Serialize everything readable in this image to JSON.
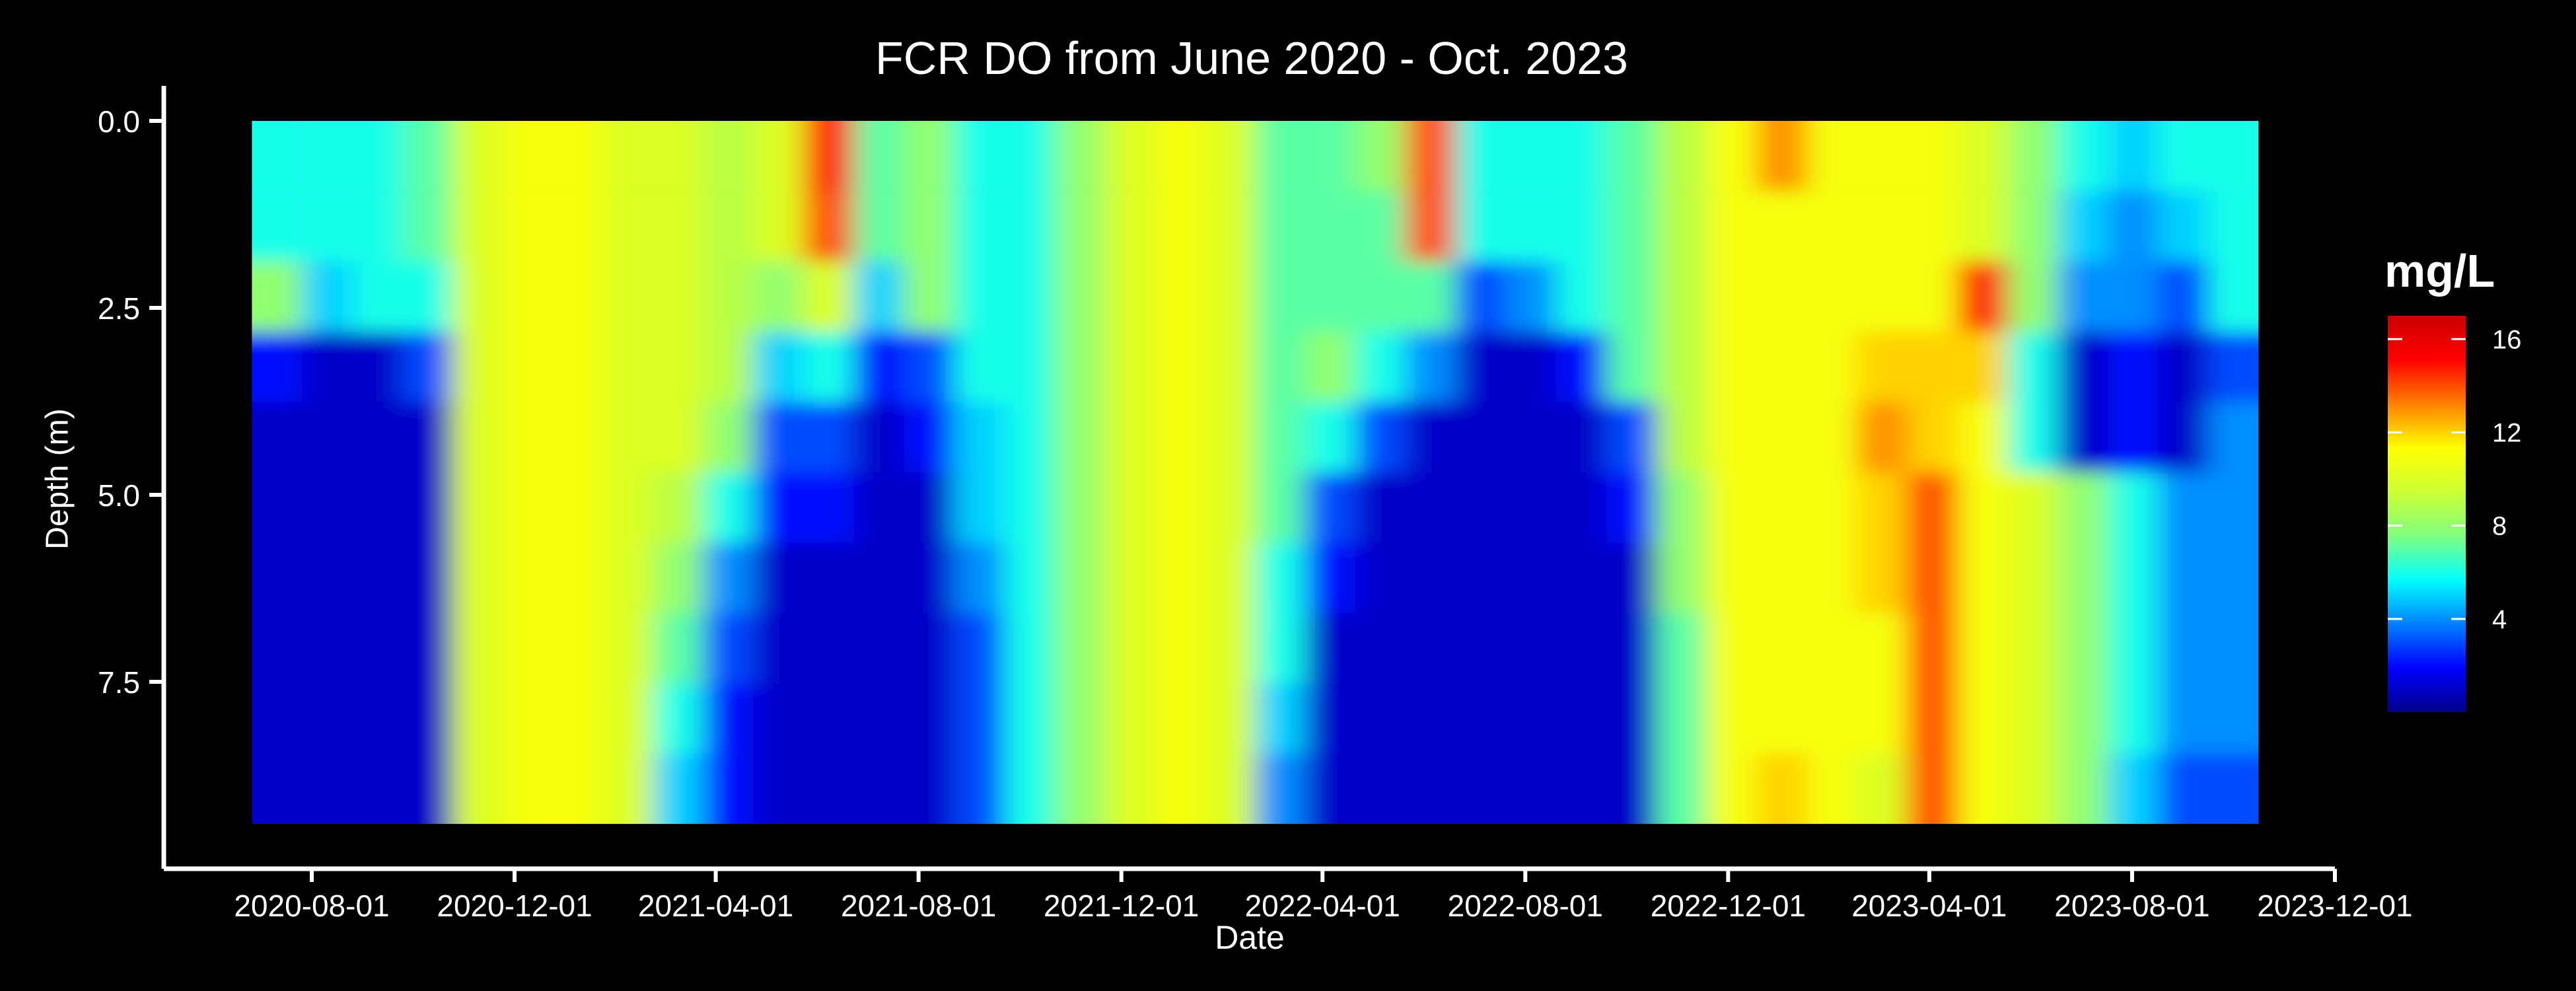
{
  "chart_data": {
    "type": "heatmap",
    "title": "FCR DO from June 2020 - Oct. 2023",
    "xlabel": "Date",
    "ylabel": "Depth (m)",
    "colorbar_label": "mg/L",
    "x_tick_labels": [
      "2020-08-01",
      "2020-12-01",
      "2021-04-01",
      "2021-08-01",
      "2021-12-01",
      "2022-04-01",
      "2022-08-01",
      "2022-12-01",
      "2023-04-01",
      "2023-08-01",
      "2023-12-01"
    ],
    "x_ticks": [
      "2020-08-01",
      "2020-12-01",
      "2021-04-01",
      "2021-08-01",
      "2021-12-01",
      "2022-04-01",
      "2022-08-01",
      "2022-12-01",
      "2023-04-01",
      "2023-08-01",
      "2023-12-01"
    ],
    "y_tick_labels": [
      "0.0",
      "2.5",
      "5.0",
      "7.5"
    ],
    "y_ticks": [
      0,
      2.5,
      5.0,
      7.5
    ],
    "xlim": [
      "2020-05-04",
      "2023-12-01"
    ],
    "ylim": [
      0,
      10
    ],
    "data_extent": {
      "x": [
        "2020-06-26",
        "2023-10-16"
      ],
      "depth": [
        0,
        9.4
      ]
    },
    "colorbar_ticks": [
      4,
      8,
      12,
      16
    ],
    "colorbar_range": [
      0,
      17
    ],
    "colormap": [
      "#00008b",
      "#0000ff",
      "#0080ff",
      "#00ffff",
      "#80ff80",
      "#ccff33",
      "#ffff00",
      "#ff8000",
      "#ff0000",
      "#cc0000"
    ],
    "dates": [
      "2020-07-01",
      "2020-08-01",
      "2020-09-01",
      "2020-10-01",
      "2020-11-01",
      "2020-12-01",
      "2021-01-01",
      "2021-02-01",
      "2021-03-01",
      "2021-04-01",
      "2021-05-01",
      "2021-06-01",
      "2021-07-01",
      "2021-08-01",
      "2021-09-01",
      "2021-10-01",
      "2021-11-01",
      "2021-12-01",
      "2022-01-01",
      "2022-02-01",
      "2022-03-01",
      "2022-04-01",
      "2022-05-01",
      "2022-06-01",
      "2022-07-01",
      "2022-08-01",
      "2022-09-01",
      "2022-10-01",
      "2022-11-01",
      "2022-12-01",
      "2023-01-01",
      "2023-02-01",
      "2023-03-01",
      "2023-04-01",
      "2023-05-01",
      "2023-06-01",
      "2023-07-01",
      "2023-08-01",
      "2023-09-01",
      "2023-10-01"
    ],
    "depths": [
      0,
      1,
      2,
      3,
      4,
      5,
      6,
      7,
      8,
      9
    ],
    "values": [
      [
        6,
        6,
        8,
        2,
        1,
        1,
        1,
        1,
        1,
        1
      ],
      [
        6,
        6,
        5,
        1,
        1,
        1,
        1,
        1,
        1,
        1
      ],
      [
        6,
        6,
        6,
        1,
        1,
        1,
        1,
        1,
        1,
        1
      ],
      [
        7,
        7,
        6,
        3,
        1,
        1,
        1,
        1,
        1,
        1
      ],
      [
        10,
        10,
        10,
        10,
        10,
        10,
        10,
        10,
        10,
        10
      ],
      [
        11,
        11,
        11,
        11,
        11,
        11,
        11,
        11,
        11,
        11
      ],
      [
        11,
        11,
        11,
        11,
        11,
        11,
        11,
        11,
        11,
        11
      ],
      [
        10,
        10,
        10,
        10,
        10,
        10,
        10,
        10,
        10,
        10
      ],
      [
        10,
        10,
        10,
        10,
        10,
        9,
        8,
        7,
        6,
        5
      ],
      [
        9,
        9,
        9,
        9,
        8,
        6,
        4,
        3,
        2,
        2
      ],
      [
        10,
        10,
        8,
        5,
        3,
        2,
        1,
        1,
        1,
        1
      ],
      [
        15,
        14,
        10,
        6,
        3,
        2,
        1,
        1,
        1,
        1
      ],
      [
        7,
        7,
        5,
        2,
        1,
        1,
        1,
        1,
        1,
        1
      ],
      [
        8,
        8,
        8,
        3,
        2,
        1,
        1,
        1,
        1,
        1
      ],
      [
        6,
        6,
        6,
        6,
        5,
        5,
        4,
        3,
        3,
        3
      ],
      [
        6,
        6,
        6,
        6,
        6,
        6,
        6,
        6,
        6,
        6
      ],
      [
        8,
        8,
        8,
        8,
        8,
        8,
        8,
        8,
        8,
        8
      ],
      [
        10,
        10,
        10,
        10,
        10,
        10,
        10,
        10,
        10,
        10
      ],
      [
        11,
        11,
        11,
        11,
        11,
        11,
        11,
        11,
        11,
        11
      ],
      [
        10,
        10,
        10,
        10,
        10,
        10,
        10,
        10,
        10,
        10
      ],
      [
        7,
        7,
        7,
        7,
        7,
        7,
        6,
        6,
        5,
        4
      ],
      [
        7,
        7,
        7,
        8,
        6,
        3,
        2,
        1,
        1,
        1
      ],
      [
        8,
        7,
        7,
        6,
        3,
        1,
        1,
        1,
        1,
        1
      ],
      [
        14,
        14,
        7,
        4,
        1,
        1,
        1,
        1,
        1,
        1
      ],
      [
        6,
        6,
        3,
        1,
        1,
        1,
        1,
        1,
        1,
        1
      ],
      [
        6,
        6,
        4,
        1,
        1,
        1,
        1,
        1,
        1,
        1
      ],
      [
        6,
        6,
        6,
        2,
        1,
        1,
        1,
        1,
        1,
        1
      ],
      [
        7,
        7,
        7,
        7,
        3,
        2,
        1,
        1,
        1,
        1
      ],
      [
        9,
        9,
        9,
        9,
        9,
        8,
        8,
        7,
        7,
        7
      ],
      [
        11,
        11,
        11,
        11,
        11,
        11,
        11,
        11,
        11,
        11
      ],
      [
        13,
        11,
        11,
        11,
        11,
        11,
        11,
        11,
        11,
        12
      ],
      [
        11,
        11,
        11,
        11,
        11,
        11,
        11,
        11,
        11,
        11
      ],
      [
        11,
        11,
        11,
        12,
        13,
        12,
        12,
        11,
        11,
        10
      ],
      [
        11,
        11,
        11,
        12,
        12,
        14,
        14,
        14,
        14,
        14
      ],
      [
        10,
        10,
        15,
        12,
        11,
        11,
        11,
        11,
        11,
        11
      ],
      [
        8,
        8,
        8,
        6,
        6,
        10,
        10,
        10,
        10,
        10
      ],
      [
        6,
        5,
        4,
        1,
        1,
        8,
        8,
        8,
        8,
        8
      ],
      [
        5,
        4,
        4,
        2,
        2,
        6,
        6,
        6,
        6,
        5
      ],
      [
        6,
        5,
        3,
        1,
        1,
        4,
        4,
        4,
        4,
        3
      ],
      [
        6,
        6,
        6,
        3,
        4,
        4,
        4,
        4,
        4,
        3
      ]
    ]
  }
}
